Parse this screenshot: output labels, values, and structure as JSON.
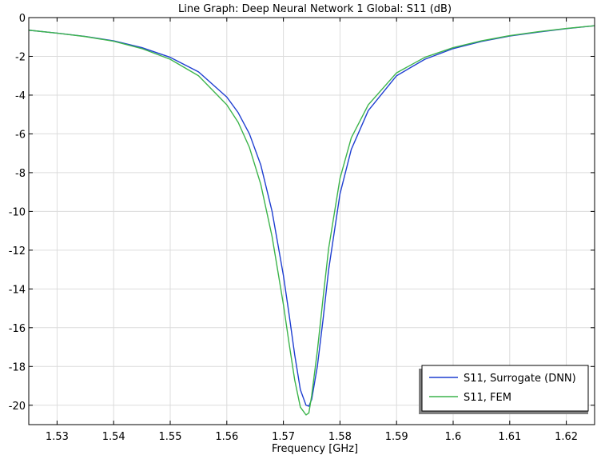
{
  "chart_data": {
    "type": "line",
    "title": "Line Graph: Deep Neural Network 1  Global: S11 (dB)",
    "xlabel": "Frequency [GHz]",
    "ylabel": "",
    "xlim": [
      1.525,
      1.625
    ],
    "ylim": [
      -21,
      0
    ],
    "x_ticks": [
      "1.53",
      "1.54",
      "1.55",
      "1.56",
      "1.57",
      "1.58",
      "1.59",
      "1.6",
      "1.61",
      "1.62"
    ],
    "y_ticks": [
      "0",
      "-2",
      "-4",
      "-6",
      "-8",
      "-10",
      "-12",
      "-14",
      "-16",
      "-18",
      "-20"
    ],
    "grid": true,
    "legend_position": "bottom-right",
    "series": [
      {
        "name": "S11, Surrogate (DNN)",
        "color": "#1f3fd1",
        "x": [
          1.525,
          1.53,
          1.535,
          1.54,
          1.545,
          1.55,
          1.555,
          1.56,
          1.562,
          1.564,
          1.566,
          1.568,
          1.57,
          1.571,
          1.572,
          1.573,
          1.574,
          1.5745,
          1.575,
          1.576,
          1.577,
          1.578,
          1.58,
          1.582,
          1.585,
          1.59,
          1.595,
          1.6,
          1.605,
          1.61,
          1.615,
          1.62,
          1.625
        ],
        "y": [
          -0.65,
          -0.8,
          -0.97,
          -1.2,
          -1.55,
          -2.05,
          -2.8,
          -4.1,
          -4.9,
          -6.0,
          -7.6,
          -10.0,
          -13.3,
          -15.3,
          -17.4,
          -19.2,
          -20.0,
          -20.05,
          -19.7,
          -18.0,
          -15.6,
          -13.0,
          -9.1,
          -6.8,
          -4.8,
          -3.0,
          -2.15,
          -1.6,
          -1.23,
          -0.95,
          -0.75,
          -0.57,
          -0.42
        ]
      },
      {
        "name": "S11, FEM",
        "color": "#3cb44b",
        "x": [
          1.525,
          1.53,
          1.535,
          1.54,
          1.545,
          1.55,
          1.555,
          1.56,
          1.562,
          1.564,
          1.566,
          1.568,
          1.57,
          1.571,
          1.572,
          1.573,
          1.574,
          1.5745,
          1.575,
          1.576,
          1.577,
          1.578,
          1.58,
          1.582,
          1.585,
          1.59,
          1.595,
          1.6,
          1.605,
          1.61,
          1.615,
          1.62,
          1.625
        ],
        "y": [
          -0.65,
          -0.8,
          -0.98,
          -1.22,
          -1.6,
          -2.15,
          -3.0,
          -4.5,
          -5.4,
          -6.7,
          -8.6,
          -11.3,
          -14.8,
          -16.8,
          -18.7,
          -20.1,
          -20.5,
          -20.4,
          -19.5,
          -17.2,
          -14.5,
          -11.9,
          -8.3,
          -6.2,
          -4.5,
          -2.85,
          -2.05,
          -1.55,
          -1.2,
          -0.93,
          -0.73,
          -0.56,
          -0.42
        ]
      }
    ]
  }
}
